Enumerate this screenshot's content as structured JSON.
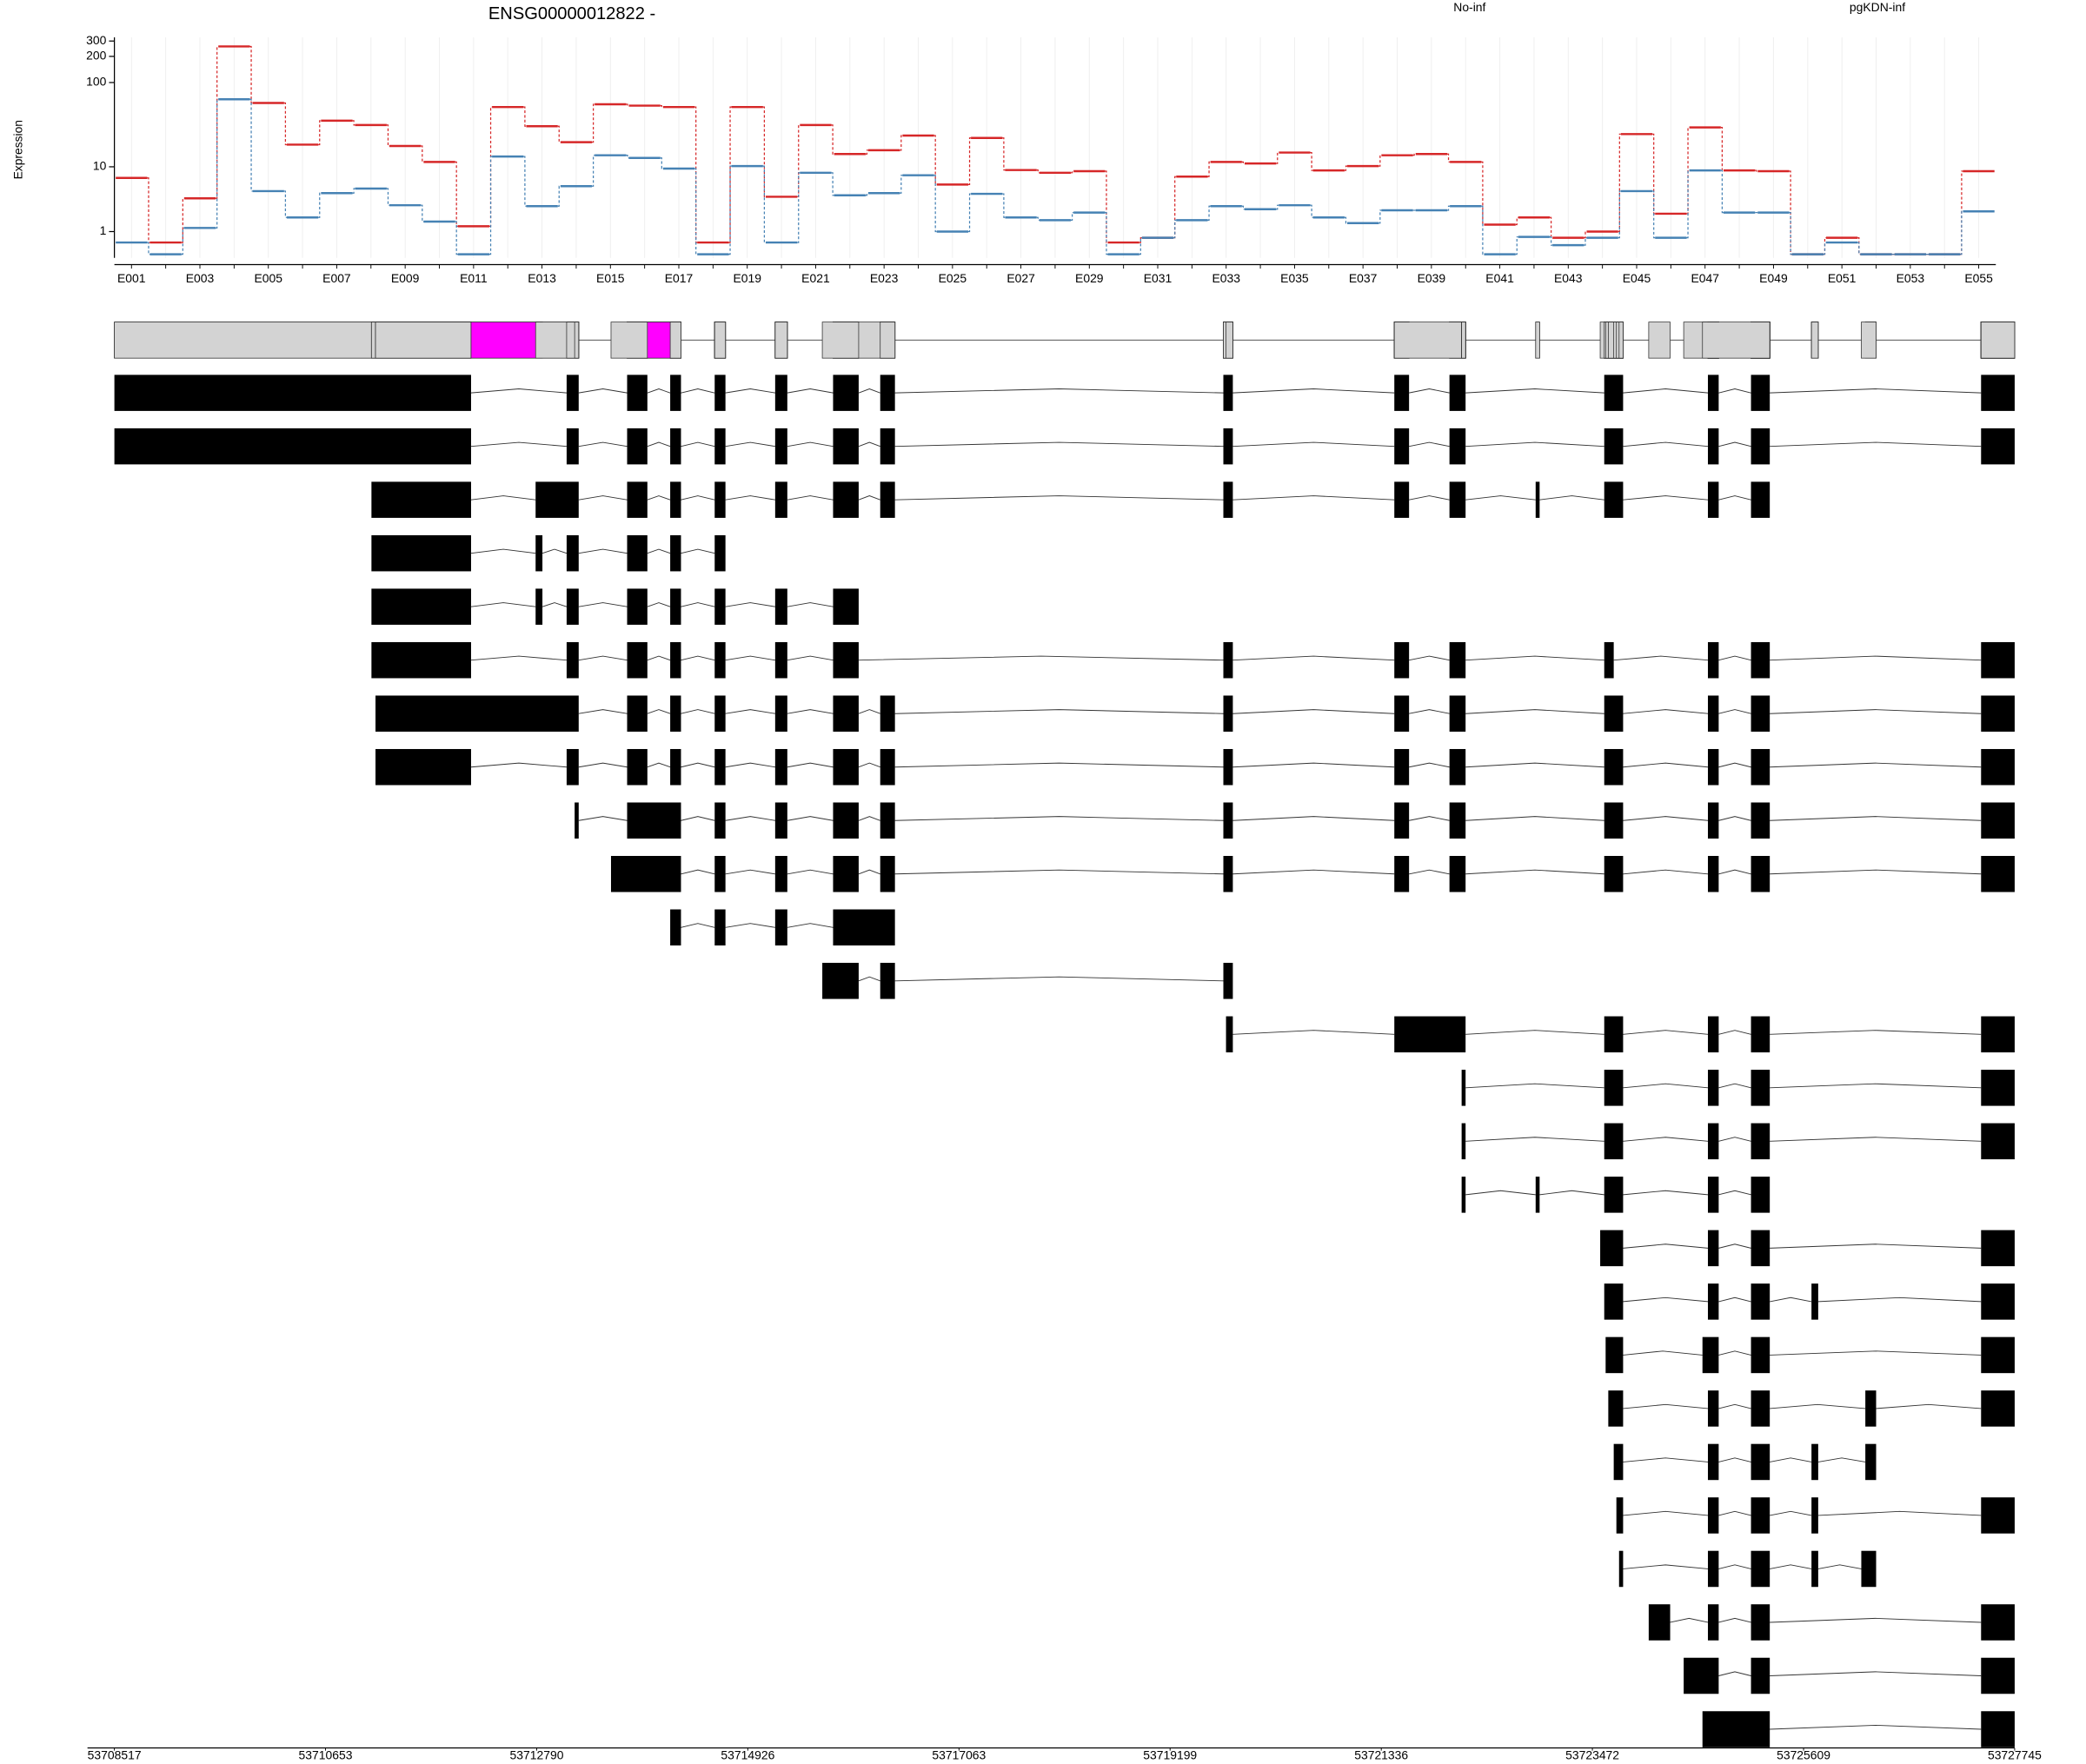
{
  "chart_data": [
    {
      "type": "step",
      "title": "ENSG00000012822 -",
      "y_label": "Expression",
      "yscale": "log1p",
      "grid": true,
      "ylim": [
        0,
        330
      ],
      "yticks": [
        1,
        10,
        100,
        200,
        300
      ],
      "categories": [
        "E001",
        null,
        "E003",
        null,
        "E005",
        null,
        "E007",
        null,
        "E009",
        null,
        "E011",
        null,
        "E013",
        null,
        "E015",
        null,
        "E017",
        null,
        "E019",
        null,
        "E021",
        null,
        "E023",
        null,
        "E025",
        null,
        "E027",
        null,
        "E029",
        null,
        "E031",
        null,
        "E033",
        null,
        "E035",
        null,
        "E037",
        null,
        "E039",
        null,
        "E041",
        null,
        "E043",
        null,
        "E045",
        null,
        "E047",
        null,
        "E049",
        null,
        "E051",
        null,
        "E053",
        null,
        "E055"
      ],
      "series": [
        {
          "name": "No-inf",
          "color": "#d62728",
          "values": [
            7.2,
            0.5,
            3.8,
            260,
            58,
            18.7,
            36,
            32,
            18,
            11.5,
            1.3,
            52,
            31,
            20,
            56,
            54,
            52,
            0.5,
            52,
            4,
            32,
            14.4,
            16,
            24,
            5.9,
            22.5,
            9.1,
            8.4,
            8.8,
            0.5,
            0.7,
            7.5,
            11.5,
            11,
            15,
            9,
            10.2,
            13.9,
            14.4,
            11.5,
            1.4,
            1.9,
            0.7,
            1,
            25,
            2.2,
            30,
            9,
            8.8,
            0.1,
            0.7,
            0.1,
            0.1,
            0.1,
            8.8
          ]
        },
        {
          "name": "pgKDN-inf",
          "color": "#4682b4",
          "values": [
            0.5,
            0.1,
            1.2,
            64,
            4.8,
            1.9,
            4.5,
            5.2,
            3,
            1.6,
            0.1,
            13.4,
            2.9,
            5.6,
            13.9,
            12.9,
            9.5,
            0.1,
            10.2,
            0.5,
            8.4,
            4.2,
            4.5,
            7.8,
            1,
            4.4,
            1.9,
            1.7,
            2.3,
            0.1,
            0.7,
            1.7,
            2.9,
            2.6,
            3,
            1.9,
            1.5,
            2.5,
            2.5,
            2.9,
            0.1,
            0.74,
            0.4,
            0.7,
            4.8,
            0.7,
            9,
            2.3,
            2.3,
            0.1,
            0.5,
            0.1,
            0.1,
            0.1,
            2.4
          ]
        }
      ]
    },
    {
      "type": "transcripts",
      "xlim": [
        53708517,
        53727745
      ],
      "xticks": [
        53708517,
        53710653,
        53712790,
        53714926,
        53717063,
        53719199,
        53721336,
        53723472,
        53725609,
        53727745
      ],
      "gene_color": "#d3d3d3",
      "exon_color": "#000000",
      "highlight_color": "#ff00ff",
      "highlights": [
        [
          53712126,
          53712779
        ],
        [
          53713910,
          53714141
        ]
      ],
      "transcripts": [
        [
          [
            53708517,
            53712126
          ],
          [
            53713093,
            53713215
          ],
          [
            53713705,
            53713910
          ],
          [
            53714141,
            53714250
          ],
          [
            53714591,
            53714700
          ],
          [
            53715203,
            53715326
          ],
          [
            53715789,
            53716048
          ],
          [
            53716266,
            53716415
          ],
          [
            53719738,
            53719834
          ],
          [
            53721468,
            53721617
          ],
          [
            53722026,
            53722189
          ],
          [
            53723592,
            53723783
          ],
          [
            53724641,
            53724750
          ],
          [
            53725077,
            53725267
          ],
          [
            53727405,
            53727745
          ]
        ],
        [
          [
            53708517,
            53712126
          ],
          [
            53713093,
            53713215
          ],
          [
            53713705,
            53713910
          ],
          [
            53714141,
            53714250
          ],
          [
            53714591,
            53714700
          ],
          [
            53715203,
            53715326
          ],
          [
            53715789,
            53716048
          ],
          [
            53716266,
            53716415
          ],
          [
            53719738,
            53719834
          ],
          [
            53721468,
            53721617
          ],
          [
            53722026,
            53722189
          ],
          [
            53723592,
            53723783
          ],
          [
            53724641,
            53724750
          ],
          [
            53725077,
            53725267
          ],
          [
            53727405,
            53727745
          ]
        ],
        [
          [
            53711118,
            53712126
          ],
          [
            53712779,
            53713215
          ],
          [
            53713705,
            53713910
          ],
          [
            53714141,
            53714250
          ],
          [
            53714591,
            53714700
          ],
          [
            53715203,
            53715326
          ],
          [
            53715789,
            53716048
          ],
          [
            53716266,
            53716415
          ],
          [
            53719738,
            53719834
          ],
          [
            53721468,
            53721617
          ],
          [
            53722026,
            53722189
          ],
          [
            53722898,
            53722938
          ],
          [
            53723592,
            53723783
          ],
          [
            53724641,
            53724750
          ],
          [
            53725077,
            53725267
          ]
        ],
        [
          [
            53711118,
            53712126
          ],
          [
            53712779,
            53712848
          ],
          [
            53713093,
            53713215
          ],
          [
            53713705,
            53713910
          ],
          [
            53714141,
            53714250
          ],
          [
            53714591,
            53714700
          ]
        ],
        [
          [
            53711118,
            53712126
          ],
          [
            53712779,
            53712848
          ],
          [
            53713093,
            53713215
          ],
          [
            53713705,
            53713910
          ],
          [
            53714141,
            53714250
          ],
          [
            53714591,
            53714700
          ],
          [
            53715203,
            53715326
          ],
          [
            53715789,
            53716048
          ]
        ],
        [
          [
            53711118,
            53712126
          ],
          [
            53713093,
            53713215
          ],
          [
            53713705,
            53713910
          ],
          [
            53714141,
            53714250
          ],
          [
            53714591,
            53714700
          ],
          [
            53715203,
            53715326
          ],
          [
            53715789,
            53716048
          ],
          [
            53719738,
            53719834
          ],
          [
            53721468,
            53721617
          ],
          [
            53722026,
            53722189
          ],
          [
            53723592,
            53723688
          ],
          [
            53724641,
            53724750
          ],
          [
            53725077,
            53725267
          ],
          [
            53727405,
            53727745
          ]
        ],
        [
          [
            53711159,
            53713215
          ],
          [
            53713705,
            53713910
          ],
          [
            53714141,
            53714250
          ],
          [
            53714591,
            53714700
          ],
          [
            53715203,
            53715326
          ],
          [
            53715789,
            53716048
          ],
          [
            53716266,
            53716415
          ],
          [
            53719738,
            53719834
          ],
          [
            53721468,
            53721617
          ],
          [
            53722026,
            53722189
          ],
          [
            53723592,
            53723783
          ],
          [
            53724641,
            53724750
          ],
          [
            53725077,
            53725267
          ],
          [
            53727405,
            53727745
          ]
        ],
        [
          [
            53711159,
            53712126
          ],
          [
            53713093,
            53713215
          ],
          [
            53713705,
            53713910
          ],
          [
            53714141,
            53714250
          ],
          [
            53714591,
            53714700
          ],
          [
            53715203,
            53715326
          ],
          [
            53715789,
            53716048
          ],
          [
            53716266,
            53716415
          ],
          [
            53719738,
            53719834
          ],
          [
            53721468,
            53721617
          ],
          [
            53722026,
            53722189
          ],
          [
            53723592,
            53723783
          ],
          [
            53724641,
            53724750
          ],
          [
            53725077,
            53725267
          ],
          [
            53727405,
            53727745
          ]
        ],
        [
          [
            53713174,
            53713215
          ],
          [
            53713705,
            53714250
          ],
          [
            53714591,
            53714700
          ],
          [
            53715203,
            53715326
          ],
          [
            53715789,
            53716048
          ],
          [
            53716266,
            53716415
          ],
          [
            53719738,
            53719834
          ],
          [
            53721468,
            53721617
          ],
          [
            53722026,
            53722189
          ],
          [
            53723592,
            53723783
          ],
          [
            53724641,
            53724750
          ],
          [
            53725077,
            53725267
          ],
          [
            53727405,
            53727745
          ]
        ],
        [
          [
            53713542,
            53714250
          ],
          [
            53714591,
            53714700
          ],
          [
            53715203,
            53715326
          ],
          [
            53715789,
            53716048
          ],
          [
            53716266,
            53716415
          ],
          [
            53719738,
            53719834
          ],
          [
            53721468,
            53721617
          ],
          [
            53722026,
            53722189
          ],
          [
            53723592,
            53723783
          ],
          [
            53724641,
            53724750
          ],
          [
            53725077,
            53725267
          ],
          [
            53727405,
            53727745
          ]
        ],
        [
          [
            53714141,
            53714250
          ],
          [
            53714591,
            53714700
          ],
          [
            53715203,
            53715326
          ],
          [
            53715789,
            53716415
          ]
        ],
        [
          [
            53715680,
            53716048
          ],
          [
            53716266,
            53716415
          ],
          [
            53719738,
            53719834
          ]
        ],
        [
          [
            53719765,
            53719834
          ],
          [
            53721468,
            53722189
          ],
          [
            53723592,
            53723783
          ],
          [
            53724641,
            53724750
          ],
          [
            53725077,
            53725267
          ],
          [
            53727405,
            53727745
          ]
        ],
        [
          [
            53722149,
            53722189
          ],
          [
            53723592,
            53723783
          ],
          [
            53724641,
            53724750
          ],
          [
            53725077,
            53725267
          ],
          [
            53727405,
            53727745
          ]
        ],
        [
          [
            53722149,
            53722189
          ],
          [
            53723592,
            53723783
          ],
          [
            53724641,
            53724750
          ],
          [
            53725077,
            53725267
          ],
          [
            53727405,
            53727745
          ]
        ],
        [
          [
            53722149,
            53722189
          ],
          [
            53722898,
            53722938
          ],
          [
            53723592,
            53723783
          ],
          [
            53724641,
            53724750
          ],
          [
            53725077,
            53725267
          ]
        ],
        [
          [
            53723551,
            53723783
          ],
          [
            53724641,
            53724750
          ],
          [
            53725077,
            53725267
          ],
          [
            53727405,
            53727745
          ]
        ],
        [
          [
            53723592,
            53723783
          ],
          [
            53724641,
            53724750
          ],
          [
            53725077,
            53725267
          ],
          [
            53725689,
            53725757
          ],
          [
            53727405,
            53727745
          ]
        ],
        [
          [
            53723606,
            53723783
          ],
          [
            53724586,
            53724750
          ],
          [
            53725077,
            53725267
          ],
          [
            53727405,
            53727745
          ]
        ],
        [
          [
            53723633,
            53723783
          ],
          [
            53724641,
            53724750
          ],
          [
            53725077,
            53725267
          ],
          [
            53726234,
            53726343
          ],
          [
            53727405,
            53727745
          ]
        ],
        [
          [
            53723688,
            53723783
          ],
          [
            53724641,
            53724750
          ],
          [
            53725077,
            53725267
          ],
          [
            53725689,
            53725757
          ],
          [
            53726234,
            53726343
          ]
        ],
        [
          [
            53723715,
            53723783
          ],
          [
            53724641,
            53724750
          ],
          [
            53725077,
            53725267
          ],
          [
            53725689,
            53725757
          ],
          [
            53727405,
            53727745
          ]
        ],
        [
          [
            53723742,
            53723783
          ],
          [
            53724641,
            53724750
          ],
          [
            53725077,
            53725267
          ],
          [
            53725689,
            53725757
          ],
          [
            53726193,
            53726343
          ]
        ],
        [
          [
            53724042,
            53724259
          ],
          [
            53724641,
            53724750
          ],
          [
            53725077,
            53725267
          ],
          [
            53727405,
            53727745
          ]
        ],
        [
          [
            53724396,
            53724750
          ],
          [
            53725077,
            53725267
          ],
          [
            53727405,
            53727745
          ]
        ],
        [
          [
            53724586,
            53725267
          ],
          [
            53727405,
            53727745
          ]
        ]
      ]
    }
  ]
}
